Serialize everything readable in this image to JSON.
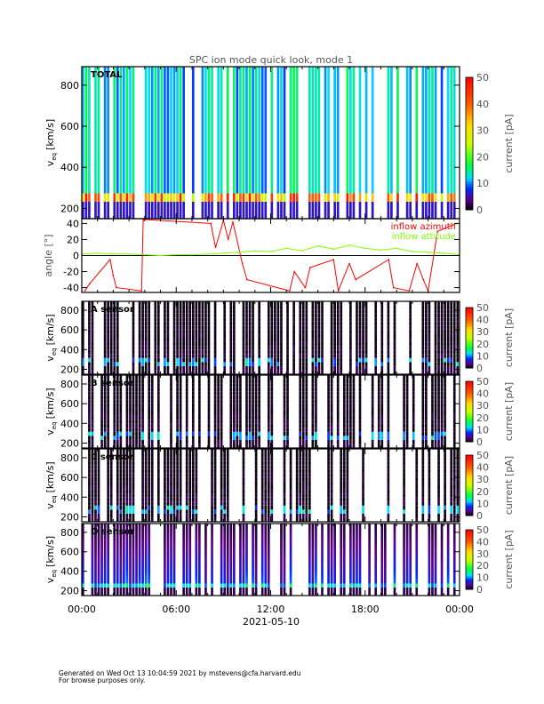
{
  "chart_data": {
    "title": "SPC ion mode quick look, mode 1",
    "xlabel": "2021-05-10",
    "x_ticks": [
      "00:00",
      "06:00",
      "12:00",
      "18:00",
      "00:00"
    ],
    "x_range_hours": [
      0,
      24
    ],
    "panels": [
      {
        "type": "heatmap",
        "label": "TOTAL",
        "ylabel": "v",
        "ylabel_sub": "eq",
        "ylabel_unit": "[km/s]",
        "y_ticks": [
          200,
          400,
          600,
          800
        ],
        "ylim": [
          150,
          890
        ],
        "colorbar": {
          "label": "current [pA]",
          "ticks": [
            0,
            10,
            20,
            30,
            40,
            50
          ],
          "range": [
            0,
            50
          ]
        },
        "peak_velocity": 240,
        "peak_current": 40
      },
      {
        "type": "line",
        "ylabel": "angle [°]",
        "y_ticks": [
          -40,
          -20,
          0,
          20,
          40
        ],
        "ylim": [
          -46,
          46
        ],
        "series": [
          {
            "name": "inflow azimuth",
            "color": "#ff0000",
            "x": [
              0.2,
              0.5,
              1.8,
              2.0,
              2.2,
              3.8,
              3.9,
              8.2,
              8.5,
              9.0,
              9.3,
              9.6,
              10.2,
              10.5,
              13.2,
              13.5,
              14.2,
              14.5,
              16.0,
              16.3,
              17.0,
              17.4,
              19.5,
              19.8,
              20.8,
              21.3,
              21.7,
              22.0,
              22.6,
              23.8
            ],
            "y": [
              -44,
              -35,
              -5,
              -25,
              -40,
              -44,
              45,
              40,
              10,
              44,
              20,
              42,
              -10,
              -30,
              -44,
              -20,
              -40,
              -15,
              -5,
              -44,
              -10,
              -30,
              -5,
              -40,
              -44,
              -10,
              -30,
              -44,
              30,
              40
            ]
          },
          {
            "name": "inflow attitude",
            "color": "#80ff00",
            "x": [
              0,
              1,
              2,
              3,
              4,
              5,
              6,
              7,
              8,
              9,
              10,
              11,
              12,
              13,
              14,
              15,
              16,
              17,
              18,
              19,
              20,
              21,
              22,
              23,
              24
            ],
            "y": [
              2,
              3,
              2,
              2,
              1,
              0,
              1,
              1,
              2,
              3,
              4,
              6,
              5,
              9,
              6,
              12,
              8,
              13,
              9,
              7,
              9,
              5,
              4,
              3,
              1
            ]
          }
        ]
      },
      {
        "type": "heatmap",
        "label": "A sensor",
        "ylabel": "v",
        "ylabel_sub": "eq",
        "ylabel_unit": "[km/s]",
        "y_ticks": [
          200,
          400,
          600,
          800
        ],
        "ylim": [
          150,
          890
        ],
        "colorbar": {
          "label": "current [pA]",
          "ticks": [
            0,
            10,
            20,
            30,
            40,
            50
          ],
          "range": [
            0,
            50
          ]
        },
        "peak_velocity": 260,
        "peak_current": 12
      },
      {
        "type": "heatmap",
        "label": "B sensor",
        "ylabel": "v",
        "ylabel_sub": "eq",
        "ylabel_unit": "[km/s]",
        "y_ticks": [
          200,
          400,
          600,
          800
        ],
        "ylim": [
          150,
          890
        ],
        "colorbar": {
          "label": "current [pA]",
          "ticks": [
            0,
            10,
            20,
            30,
            40,
            50
          ],
          "range": [
            0,
            50
          ]
        },
        "peak_velocity": 260,
        "peak_current": 12
      },
      {
        "type": "heatmap",
        "label": "C sensor",
        "ylabel": "v",
        "ylabel_sub": "eq",
        "ylabel_unit": "[km/s]",
        "y_ticks": [
          200,
          400,
          600,
          800
        ],
        "ylim": [
          150,
          890
        ],
        "colorbar": {
          "label": "current [pA]",
          "ticks": [
            0,
            10,
            20,
            30,
            40,
            50
          ],
          "range": [
            0,
            50
          ]
        },
        "peak_velocity": 260,
        "peak_current": 12
      },
      {
        "type": "heatmap",
        "label": "D sensor",
        "ylabel": "v",
        "ylabel_sub": "eq",
        "ylabel_unit": "[km/s]",
        "y_ticks": [
          200,
          400,
          600,
          800
        ],
        "ylim": [
          150,
          890
        ],
        "colorbar": {
          "label": "current [pA]",
          "ticks": [
            0,
            10,
            20,
            30,
            40,
            50
          ],
          "range": [
            0,
            50
          ]
        },
        "peak_velocity": 250,
        "peak_current": 14
      }
    ]
  },
  "footer": {
    "line1": "Generated on Wed Oct 13 10:04:59 2021 by mstevens@cfa.harvard.edu",
    "line2": "For browse purposes only."
  }
}
